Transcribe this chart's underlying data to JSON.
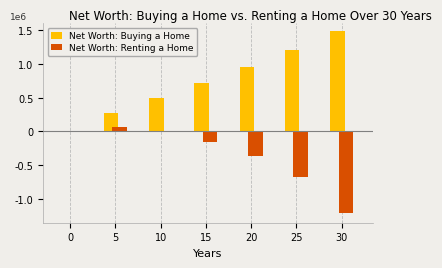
{
  "title": "Net Worth: Buying a Home vs. Renting a Home Over 30 Years",
  "xlabel": "Years",
  "years": [
    0,
    5,
    10,
    15,
    20,
    25,
    30
  ],
  "buying": [
    0,
    280000,
    500000,
    720000,
    950000,
    1200000,
    1480000
  ],
  "renting": [
    0,
    60000,
    -15000,
    -150000,
    -370000,
    -680000,
    -1200000
  ],
  "buying_color": "#FFC000",
  "renting_color": "#D94F00",
  "bg_color": "#f0eeea",
  "bar_width": 1.6,
  "bar_gap": 0.3,
  "legend_buying": "Net Worth: Buying a Home",
  "legend_renting": "Net Worth: Renting a Home",
  "ylim_min": -1350000,
  "ylim_max": 1600000,
  "grid_color": "#bbbbbb",
  "title_fontsize": 8.5,
  "tick_fontsize": 7,
  "legend_fontsize": 6.5,
  "xlabel_fontsize": 8
}
